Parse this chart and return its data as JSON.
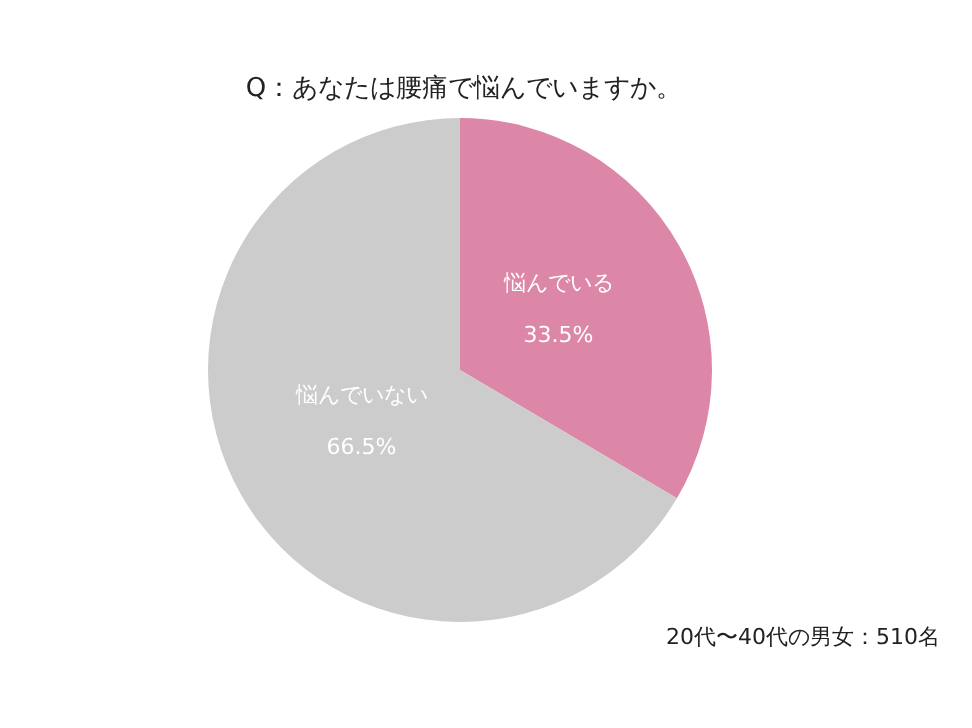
{
  "chart_data": {
    "type": "pie",
    "title": "Q：あなたは腰痛で悩んでいますか。",
    "categories": [
      "悩んでいる",
      "悩んでいない"
    ],
    "values": [
      33.5,
      66.5
    ],
    "colors": [
      "#dc87a8",
      "#cccccc"
    ],
    "value_labels": [
      "33.5%",
      "66.5%"
    ],
    "annotations": [
      "20代〜40代の男女：510名"
    ]
  }
}
